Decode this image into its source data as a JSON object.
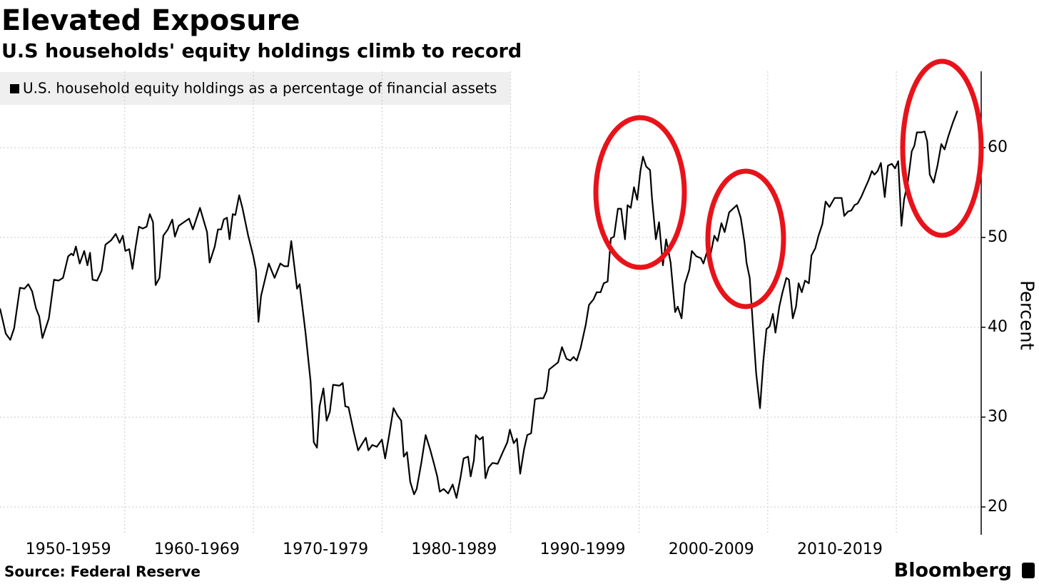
{
  "chart_data": {
    "type": "line",
    "title": "Elevated Exposure",
    "subtitle": "U.S households' equity holdings climb to record",
    "y_label": "Percent",
    "source": "Source: Federal Reserve",
    "brand": "Bloomberg",
    "xlim": [
      1950.3,
      2026.6
    ],
    "xticks": [
      {
        "value": 1955,
        "label": "1950-1959"
      },
      {
        "value": 1965,
        "label": "1960-1969"
      },
      {
        "value": 1975,
        "label": "1970-1979"
      },
      {
        "value": 1985,
        "label": "1980-1989"
      },
      {
        "value": 1995,
        "label": "1990-1999"
      },
      {
        "value": 2005,
        "label": "2000-2009"
      },
      {
        "value": 2015,
        "label": "2010-2019"
      }
    ],
    "xgrid": [
      1960,
      1970,
      1980,
      1990,
      2000,
      2010,
      2020
    ],
    "ylim": [
      16.9,
      68.5
    ],
    "yticks": [
      20,
      30,
      40,
      50,
      60
    ],
    "grid": true,
    "x": [
      1950.3,
      1950.75,
      1951.1,
      1951.4,
      1951.85,
      1952.2,
      1952.5,
      1952.8,
      1953.1,
      1953.35,
      1953.6,
      1954.1,
      1954.5,
      1954.85,
      1955.2,
      1955.6,
      1955.85,
      1956.0,
      1956.2,
      1956.5,
      1956.85,
      1957.1,
      1957.3,
      1957.5,
      1957.85,
      1958.2,
      1958.5,
      1958.95,
      1959.3,
      1959.6,
      1959.85,
      1960.05,
      1960.35,
      1960.6,
      1960.85,
      1961.1,
      1961.4,
      1961.7,
      1961.95,
      1962.2,
      1962.4,
      1962.7,
      1963.0,
      1963.35,
      1963.7,
      1963.9,
      1964.2,
      1964.6,
      1965.0,
      1965.3,
      1965.85,
      1966.4,
      1966.6,
      1967.0,
      1967.25,
      1967.5,
      1967.7,
      1967.95,
      1968.15,
      1968.4,
      1968.6,
      1968.9,
      1969.15,
      1969.6,
      1970.0,
      1970.2,
      1970.4,
      1970.6,
      1971.2,
      1971.65,
      1972.1,
      1972.4,
      1972.7,
      1972.95,
      1973.4,
      1973.6,
      1974.05,
      1974.45,
      1974.7,
      1974.95,
      1975.15,
      1975.45,
      1975.7,
      1975.95,
      1976.2,
      1976.7,
      1976.95,
      1977.15,
      1977.4,
      1977.8,
      1978.15,
      1978.4,
      1978.75,
      1978.95,
      1979.25,
      1979.6,
      1980.0,
      1980.25,
      1980.55,
      1980.9,
      1981.2,
      1981.5,
      1981.7,
      1981.95,
      1982.2,
      1982.5,
      1982.7,
      1983.05,
      1983.4,
      1983.75,
      1984.05,
      1984.3,
      1984.5,
      1984.8,
      1985.15,
      1985.5,
      1985.8,
      1986.1,
      1986.35,
      1986.7,
      1986.9,
      1987.15,
      1987.3,
      1987.6,
      1987.85,
      1988.05,
      1988.3,
      1988.6,
      1989.0,
      1989.4,
      1989.75,
      1989.95,
      1990.25,
      1990.5,
      1990.75,
      1991.05,
      1991.3,
      1991.6,
      1991.9,
      1992.25,
      1992.55,
      1992.8,
      1993.0,
      1993.35,
      1993.7,
      1994.0,
      1994.35,
      1994.65,
      1994.9,
      1995.15,
      1995.45,
      1995.85,
      1996.1,
      1996.45,
      1996.7,
      1997.0,
      1997.25,
      1997.55,
      1997.8,
      1998.05,
      1998.35,
      1998.6,
      1998.9,
      1999.1,
      1999.35,
      1999.6,
      1999.85,
      2000.1,
      2000.3,
      2000.55,
      2000.85,
      2001.0,
      2001.3,
      2001.55,
      2001.85,
      2002.1,
      2002.45,
      2002.8,
      2003.0,
      2003.3,
      2003.55,
      2003.9,
      2004.1,
      2004.45,
      2004.8,
      2005.0,
      2005.3,
      2005.55,
      2005.85,
      2006.1,
      2006.4,
      2006.65,
      2007.0,
      2007.3,
      2007.6,
      2007.9,
      2008.2,
      2008.35,
      2008.6,
      2008.9,
      2009.1,
      2009.4,
      2009.65,
      2009.9,
      2010.15,
      2010.4,
      2010.6,
      2010.9,
      2011.15,
      2011.45,
      2011.65,
      2011.95,
      2012.2,
      2012.4,
      2012.65,
      2012.9,
      2013.2,
      2013.4,
      2013.7,
      2013.95,
      2014.25,
      2014.5,
      2014.8,
      2015.2,
      2015.5,
      2015.75,
      2015.95,
      2016.25,
      2016.5,
      2016.75,
      2017.0,
      2017.3,
      2017.6,
      2017.85,
      2018.1,
      2018.3,
      2018.55,
      2018.8,
      2019.1,
      2019.35,
      2019.65,
      2019.9,
      2020.15,
      2020.4,
      2020.6,
      2020.9,
      2021.2,
      2021.4,
      2021.6,
      2021.95,
      2022.2,
      2022.4,
      2022.6,
      2022.9,
      2023.2,
      2023.5,
      2023.75,
      2024.05,
      2024.4,
      2024.75
    ],
    "series": [
      {
        "name": "U.S. household equity holdings as a percentage of financial assets",
        "color": "#000000",
        "values": [
          42.1,
          39.3,
          38.6,
          39.9,
          44.4,
          44.3,
          44.8,
          44.0,
          42.1,
          41.2,
          38.8,
          41.0,
          45.3,
          45.2,
          45.5,
          47.9,
          48.2,
          48.0,
          49.0,
          47.1,
          48.5,
          46.9,
          48.3,
          45.3,
          45.2,
          46.3,
          49.2,
          49.7,
          50.4,
          49.4,
          50.2,
          48.5,
          48.7,
          46.5,
          49.0,
          51.2,
          51.0,
          51.2,
          52.6,
          51.7,
          44.7,
          45.5,
          50.2,
          50.9,
          52.0,
          50.1,
          51.3,
          51.7,
          52.1,
          50.9,
          53.3,
          50.6,
          47.2,
          49.0,
          50.9,
          50.9,
          52.0,
          52.2,
          49.8,
          52.6,
          52.5,
          54.7,
          53.3,
          50.2,
          47.9,
          46.4,
          40.6,
          43.5,
          47.1,
          45.5,
          47.1,
          46.8,
          46.8,
          49.6,
          44.3,
          44.8,
          39.5,
          34.0,
          27.2,
          26.6,
          31.2,
          33.2,
          29.6,
          30.6,
          33.6,
          33.5,
          33.8,
          31.2,
          31.1,
          28.4,
          26.3,
          26.9,
          27.7,
          26.3,
          26.9,
          26.7,
          27.5,
          25.4,
          27.9,
          31.0,
          30.2,
          29.6,
          25.6,
          26.1,
          22.8,
          21.4,
          22.0,
          24.8,
          28.0,
          26.4,
          24.8,
          23.4,
          21.7,
          22.0,
          21.5,
          22.5,
          21.0,
          23.2,
          25.4,
          25.6,
          23.4,
          25.2,
          28.0,
          27.5,
          27.8,
          23.2,
          24.4,
          24.9,
          24.8,
          26.1,
          27.2,
          28.6,
          27.1,
          27.6,
          23.7,
          26.4,
          28.0,
          28.2,
          32.0,
          32.1,
          32.1,
          32.9,
          35.3,
          35.7,
          36.1,
          37.8,
          36.5,
          36.3,
          36.7,
          36.3,
          37.7,
          40.3,
          42.5,
          43.1,
          43.9,
          43.9,
          44.9,
          45.1,
          49.9,
          50.1,
          53.2,
          53.2,
          49.8,
          53.6,
          53.3,
          55.6,
          54.2,
          57.4,
          59.0,
          57.9,
          57.5,
          54.4,
          49.8,
          51.7,
          46.9,
          49.8,
          47.2,
          41.7,
          42.3,
          41.0,
          44.8,
          46.4,
          48.5,
          47.9,
          47.7,
          47.1,
          48.5,
          48.1,
          50.2,
          49.6,
          51.6,
          50.6,
          52.8,
          53.2,
          53.6,
          52.2,
          49.4,
          47.2,
          45.5,
          39.1,
          34.9,
          31.0,
          36.1,
          39.8,
          40.1,
          41.5,
          39.4,
          42.3,
          43.9,
          45.5,
          45.3,
          41.0,
          42.3,
          44.9,
          43.9,
          45.2,
          44.9,
          48.0,
          48.8,
          50.2,
          51.5,
          54.0,
          53.4,
          54.4,
          54.4,
          54.4,
          52.4,
          52.9,
          53.0,
          53.6,
          53.8,
          54.6,
          55.6,
          56.4,
          57.4,
          57.0,
          57.4,
          58.3,
          54.5,
          58.0,
          58.2,
          57.7,
          58.5,
          51.3,
          54.2,
          56.2,
          59.6,
          60.2,
          61.7,
          61.7,
          61.8,
          60.7,
          57.0,
          56.1,
          58.0,
          60.4,
          59.8,
          61.3,
          62.8,
          64.1
        ]
      }
    ]
  }
}
